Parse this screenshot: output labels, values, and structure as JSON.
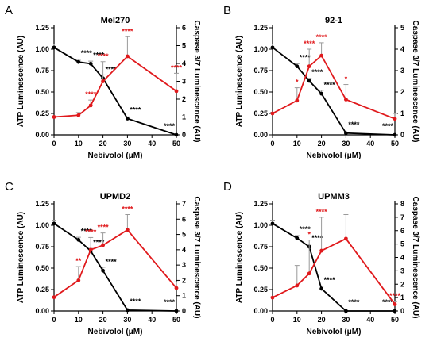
{
  "colors": {
    "atp": "#000000",
    "caspase": "#e0191c",
    "error_bar": "#9a9a9a"
  },
  "chart_data": [
    {
      "type": "line",
      "letter": "A",
      "title": "Mel270",
      "xlabel": "Nebivolol (μM)",
      "ylabel_left": "ATP Luminescence (AU)",
      "ylabel_right": "Caspase 3/7 Luminescence (AU)",
      "x_ticks": [
        0,
        10,
        20,
        30,
        40,
        50
      ],
      "y_left_ticks": [
        "0.00",
        "0.25",
        "0.50",
        "0.75",
        "1.00",
        "1.25"
      ],
      "y_right_ticks": [
        "0",
        "1",
        "2",
        "3",
        "4",
        "5",
        "6"
      ],
      "ylim_left": [
        0,
        1.25
      ],
      "ylim_right": [
        0,
        6
      ],
      "grid": false,
      "series": [
        {
          "axis": "left",
          "color": "atp",
          "x": [
            0,
            10,
            15,
            20,
            30,
            50
          ],
          "y": [
            1.02,
            0.85,
            0.83,
            0.66,
            0.19,
            0.0
          ],
          "err": [
            0.04,
            0.02,
            0.03,
            0.04,
            0.02,
            0.01
          ],
          "sig": [
            null,
            "****",
            "****",
            "****",
            "****",
            "****"
          ]
        },
        {
          "axis": "right",
          "color": "caspase",
          "x": [
            0,
            10,
            15,
            20,
            30,
            50
          ],
          "y": [
            1.0,
            1.1,
            1.65,
            3.0,
            4.4,
            2.45
          ],
          "err": [
            0.05,
            0.15,
            0.3,
            1.1,
            1.1,
            1.0
          ],
          "sig": [
            null,
            null,
            "****",
            "****",
            "****",
            "****"
          ]
        }
      ]
    },
    {
      "type": "line",
      "letter": "B",
      "title": "92-1",
      "xlabel": "Nebivolol (μM)",
      "ylabel_left": "ATP Luminescence (AU)",
      "ylabel_right": "Caspase 3/7 Luminescence (AU)",
      "x_ticks": [
        0,
        10,
        20,
        30,
        40,
        50
      ],
      "y_left_ticks": [
        "0.00",
        "0.25",
        "0.50",
        "0.75",
        "1.00",
        "1.25"
      ],
      "y_right_ticks": [
        "0",
        "1",
        "2",
        "3",
        "4",
        "5"
      ],
      "ylim_left": [
        0,
        1.25
      ],
      "ylim_right": [
        0,
        5
      ],
      "grid": false,
      "series": [
        {
          "axis": "left",
          "color": "atp",
          "x": [
            0,
            10,
            15,
            20,
            30,
            50
          ],
          "y": [
            1.02,
            0.8,
            0.63,
            0.48,
            0.02,
            0.0
          ],
          "err": [
            0.04,
            0.03,
            0.03,
            0.04,
            0.01,
            0.01
          ],
          "sig": [
            null,
            "****",
            "****",
            "****",
            "****",
            "****"
          ]
        },
        {
          "axis": "right",
          "color": "caspase",
          "x": [
            0,
            10,
            15,
            20,
            30,
            50
          ],
          "y": [
            1.0,
            1.6,
            3.2,
            3.7,
            1.65,
            0.75
          ],
          "err": [
            0.05,
            0.6,
            0.8,
            0.6,
            0.7,
            0.25
          ],
          "sig": [
            null,
            "*",
            "****",
            "****",
            "*",
            null
          ]
        }
      ]
    },
    {
      "type": "line",
      "letter": "C",
      "title": "UPMD2",
      "xlabel": "Nebivolol (μM)",
      "ylabel_left": "ATP Luminescence (AU)",
      "ylabel_right": "Caspase 3/7 Luminescence (AU)",
      "x_ticks": [
        0,
        10,
        20,
        30,
        40,
        50
      ],
      "y_left_ticks": [
        "0.00",
        "0.25",
        "0.50",
        "0.75",
        "1.00",
        "1.25"
      ],
      "y_right_ticks": [
        "0",
        "1",
        "2",
        "3",
        "4",
        "5",
        "6",
        "7"
      ],
      "ylim_left": [
        0,
        1.25
      ],
      "ylim_right": [
        0,
        7
      ],
      "grid": false,
      "series": [
        {
          "axis": "left",
          "color": "atp",
          "x": [
            0,
            10,
            15,
            20,
            30,
            50
          ],
          "y": [
            1.02,
            0.83,
            0.7,
            0.47,
            0.01,
            0.0
          ],
          "err": [
            0.04,
            0.03,
            0.03,
            0.04,
            0.01,
            0.01
          ],
          "sig": [
            null,
            "****",
            "****",
            "****",
            "****",
            "****"
          ]
        },
        {
          "axis": "right",
          "color": "caspase",
          "x": [
            0,
            10,
            15,
            20,
            30,
            50
          ],
          "y": [
            0.9,
            2.0,
            4.0,
            4.3,
            5.3,
            1.5
          ],
          "err": [
            0.05,
            0.9,
            0.8,
            0.8,
            1.0,
            0.4
          ],
          "sig": [
            null,
            "**",
            "****",
            "****",
            "****",
            null
          ]
        }
      ]
    },
    {
      "type": "line",
      "letter": "D",
      "title": "UPMM3",
      "xlabel": "Nebivolol (μM)",
      "ylabel_left": "ATP Luminescence (AU)",
      "ylabel_right": "Caspase 3/7 Luminescence (AU)",
      "x_ticks": [
        0,
        10,
        20,
        30,
        40,
        50
      ],
      "y_left_ticks": [
        "0.00",
        "0.25",
        "0.50",
        "0.75",
        "1.00",
        "1.25"
      ],
      "y_right_ticks": [
        "0",
        "1",
        "2",
        "3",
        "4",
        "5",
        "6",
        "7",
        "8"
      ],
      "ylim_left": [
        0,
        1.25
      ],
      "ylim_right": [
        0,
        8
      ],
      "grid": false,
      "series": [
        {
          "axis": "left",
          "color": "atp",
          "x": [
            0,
            10,
            15,
            20,
            30,
            50
          ],
          "y": [
            1.02,
            0.85,
            0.75,
            0.26,
            0.0,
            0.0
          ],
          "err": [
            0.04,
            0.03,
            0.03,
            0.03,
            0.01,
            0.01
          ],
          "sig": [
            null,
            "****",
            "****",
            "****",
            "****",
            "****"
          ]
        },
        {
          "axis": "right",
          "color": "caspase",
          "x": [
            0,
            10,
            15,
            20,
            30,
            50
          ],
          "y": [
            1.0,
            1.9,
            2.8,
            4.5,
            5.4,
            0.5
          ],
          "err": [
            0.05,
            1.5,
            2.5,
            2.5,
            1.8,
            0.2
          ],
          "sig": [
            null,
            null,
            "*",
            "****",
            null,
            "****"
          ]
        }
      ]
    }
  ]
}
